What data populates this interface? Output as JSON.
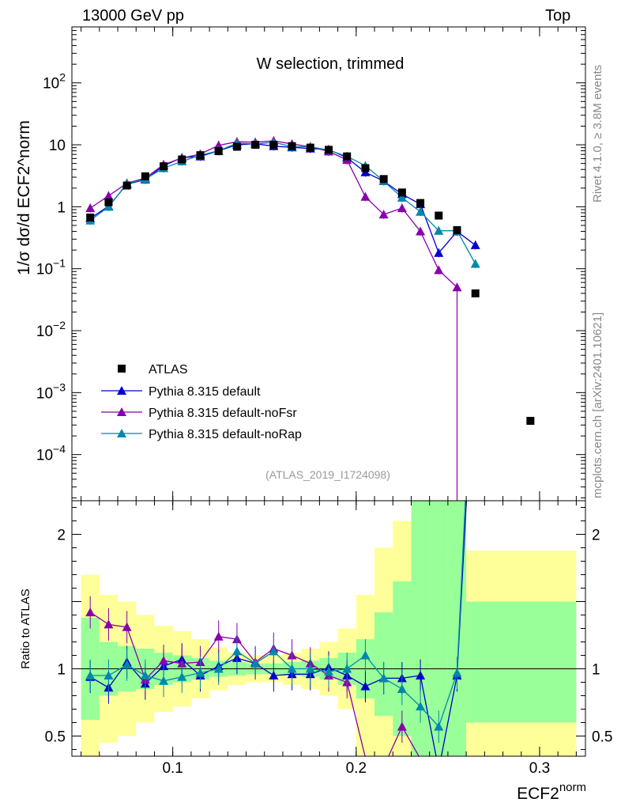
{
  "header": {
    "left": "13000 GeV pp",
    "right": "Top"
  },
  "side_labels": {
    "rivet": "Rivet 4.1.0, ≥ 3.8M events",
    "mcplots": "mcplots.cern.ch [arXiv:2401.10621]"
  },
  "chart_data": {
    "type": "scatter",
    "title": "W selection, trimmed",
    "watermark": "(ATLAS_2019_I1724098)",
    "xlabel_main": "ECF2",
    "xlabel_sup": "norm",
    "ylabel": "1/σ dσ/d ECF2^norm",
    "ratio_ylabel": "Ratio to ATLAS",
    "x_ticks": [
      0.1,
      0.2,
      0.3
    ],
    "xlim": [
      0.045,
      0.325
    ],
    "ylim_main": [
      1.8e-05,
      800
    ],
    "y_ticks_main": [
      {
        "value": 100,
        "base": "10",
        "exp": "2"
      },
      {
        "value": 10,
        "base": "10",
        "exp": ""
      },
      {
        "value": 1,
        "base": "1",
        "exp": ""
      },
      {
        "value": 0.1,
        "base": "10",
        "exp": "−1"
      },
      {
        "value": 0.01,
        "base": "10",
        "exp": "−2"
      },
      {
        "value": 0.001,
        "base": "10",
        "exp": "−3"
      },
      {
        "value": 0.0001,
        "base": "10",
        "exp": "−4"
      }
    ],
    "ylim_ratio": [
      0.35,
      2.25
    ],
    "y_ticks_ratio": [
      0.5,
      1,
      2
    ],
    "legend": [
      "ATLAS",
      "Pythia 8.315 default",
      "Pythia 8.315 default-noFsr",
      "Pythia 8.315 default-noRap"
    ],
    "band_edges": [
      0.05,
      0.06,
      0.07,
      0.08,
      0.09,
      0.1,
      0.11,
      0.12,
      0.13,
      0.14,
      0.15,
      0.16,
      0.17,
      0.18,
      0.19,
      0.2,
      0.21,
      0.22,
      0.23,
      0.24,
      0.25,
      0.26,
      0.32
    ],
    "band_inner": [
      [
        0.62,
        1.38
      ],
      [
        0.8,
        1.2
      ],
      [
        0.83,
        1.17
      ],
      [
        0.85,
        1.15
      ],
      [
        0.88,
        1.12
      ],
      [
        0.9,
        1.1
      ],
      [
        0.92,
        1.08
      ],
      [
        0.94,
        1.06
      ],
      [
        0.95,
        1.05
      ],
      [
        0.96,
        1.04
      ],
      [
        0.96,
        1.04
      ],
      [
        0.95,
        1.05
      ],
      [
        0.94,
        1.06
      ],
      [
        0.92,
        1.08
      ],
      [
        0.88,
        1.12
      ],
      [
        0.78,
        1.22
      ],
      [
        0.65,
        1.42
      ],
      [
        0.5,
        1.65
      ],
      [
        0.35,
        2.25
      ],
      [
        0.35,
        2.25
      ],
      [
        0.35,
        2.25
      ],
      [
        0.6,
        1.5
      ]
    ],
    "band_outer": [
      [
        0.35,
        1.7
      ],
      [
        0.45,
        1.55
      ],
      [
        0.5,
        1.5
      ],
      [
        0.6,
        1.4
      ],
      [
        0.68,
        1.32
      ],
      [
        0.72,
        1.28
      ],
      [
        0.78,
        1.22
      ],
      [
        0.84,
        1.16
      ],
      [
        0.88,
        1.12
      ],
      [
        0.9,
        1.1
      ],
      [
        0.9,
        1.1
      ],
      [
        0.88,
        1.12
      ],
      [
        0.85,
        1.15
      ],
      [
        0.8,
        1.2
      ],
      [
        0.7,
        1.3
      ],
      [
        0.35,
        1.55
      ],
      [
        0.35,
        1.9
      ],
      [
        0.35,
        2.1
      ],
      [
        0.35,
        2.25
      ],
      [
        0.35,
        2.25
      ],
      [
        0.35,
        2.25
      ],
      [
        0.35,
        1.88
      ]
    ],
    "atlas": {
      "name": "ATLAS",
      "x": [
        0.055,
        0.065,
        0.075,
        0.085,
        0.095,
        0.105,
        0.115,
        0.125,
        0.135,
        0.145,
        0.155,
        0.165,
        0.175,
        0.185,
        0.195,
        0.205,
        0.215,
        0.225,
        0.235,
        0.245,
        0.255,
        0.265,
        0.295
      ],
      "y": [
        0.67,
        1.18,
        2.2,
        3.1,
        4.5,
        5.8,
        6.8,
        7.9,
        9.3,
        10.0,
        10.0,
        9.5,
        9.0,
        8.3,
        6.5,
        4.2,
        2.8,
        1.7,
        1.15,
        0.72,
        0.42,
        0.04,
        0.00035
      ]
    },
    "series": [
      {
        "name": "Pythia 8.315 default",
        "color": "#0000cc",
        "x": [
          0.055,
          0.065,
          0.075,
          0.085,
          0.095,
          0.105,
          0.115,
          0.125,
          0.135,
          0.145,
          0.155,
          0.165,
          0.175,
          0.185,
          0.195,
          0.205,
          0.215,
          0.225,
          0.235,
          0.245,
          0.255,
          0.265
        ],
        "y": [
          0.65,
          1.02,
          2.3,
          2.75,
          4.6,
          6.2,
          6.5,
          8.0,
          10.0,
          10.4,
          9.5,
          9.1,
          8.7,
          8.4,
          6.2,
          3.6,
          2.6,
          1.6,
          1.1,
          0.18,
          0.4,
          0.24
        ],
        "ratio": [
          0.94,
          0.86,
          1.05,
          0.89,
          1.02,
          1.07,
          0.95,
          1.02,
          1.08,
          1.04,
          0.95,
          0.96,
          0.96,
          1.01,
          0.95,
          0.87,
          0.93,
          0.93,
          0.95,
          0.25,
          0.95,
          3.5
        ]
      },
      {
        "name": "Pythia 8.315 default-noFsr",
        "color": "#8800aa",
        "x": [
          0.055,
          0.065,
          0.075,
          0.085,
          0.095,
          0.105,
          0.115,
          0.125,
          0.135,
          0.145,
          0.155,
          0.165,
          0.175,
          0.185,
          0.195,
          0.205,
          0.215,
          0.225,
          0.235,
          0.245,
          0.255
        ],
        "y": [
          0.95,
          1.5,
          2.4,
          2.9,
          4.8,
          6.1,
          7.1,
          9.8,
          11.2,
          11.0,
          11.6,
          10.3,
          9.3,
          7.8,
          5.7,
          1.45,
          0.75,
          0.95,
          0.4,
          0.095,
          0.05
        ],
        "ratio": [
          1.42,
          1.33,
          1.31,
          0.92,
          1.06,
          1.04,
          1.05,
          1.24,
          1.22,
          1.05,
          1.15,
          1.1,
          1.04,
          0.95,
          0.9,
          0.34,
          0.27,
          0.57,
          0.33,
          0.13,
          0.12
        ]
      },
      {
        "name": "Pythia 8.315 default-noRap",
        "color": "#0088aa",
        "x": [
          0.055,
          0.065,
          0.075,
          0.085,
          0.095,
          0.105,
          0.115,
          0.125,
          0.135,
          0.145,
          0.155,
          0.165,
          0.175,
          0.185,
          0.195,
          0.205,
          0.215,
          0.225,
          0.235,
          0.245,
          0.255,
          0.265
        ],
        "y": [
          0.6,
          1.0,
          2.35,
          2.8,
          4.2,
          5.4,
          6.8,
          8.0,
          10.6,
          10.3,
          11.0,
          9.3,
          9.3,
          8.2,
          6.5,
          4.6,
          2.6,
          1.4,
          0.83,
          0.41,
          0.41,
          0.12
        ],
        "ratio": [
          0.95,
          0.95,
          1.03,
          0.95,
          0.91,
          0.94,
          0.97,
          1.0,
          1.13,
          1.04,
          1.13,
          1.0,
          1.0,
          0.98,
          1.0,
          1.1,
          0.93,
          0.85,
          0.72,
          0.57,
          0.97,
          3.8
        ]
      }
    ]
  }
}
